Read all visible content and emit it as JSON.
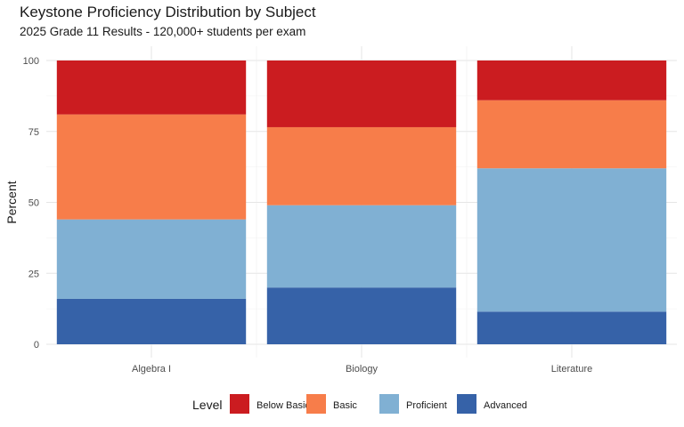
{
  "chart_data": {
    "type": "bar",
    "stacked": true,
    "title": "Keystone Proficiency Distribution by Subject",
    "subtitle": "2025 Grade 11 Results - 120,000+ students per exam",
    "xlabel": "",
    "ylabel": "Percent",
    "ylim": [
      0,
      100
    ],
    "yticks": [
      0,
      25,
      50,
      75,
      100
    ],
    "categories": [
      "Algebra I",
      "Biology",
      "Literature"
    ],
    "series": [
      {
        "name": "Advanced",
        "color": "#3662a8",
        "values": [
          16,
          20,
          11.5
        ]
      },
      {
        "name": "Proficient",
        "color": "#80b0d3",
        "values": [
          28,
          29,
          50.5
        ]
      },
      {
        "name": "Basic",
        "color": "#f77d4a",
        "values": [
          37,
          27.5,
          24
        ]
      },
      {
        "name": "Below Basic",
        "color": "#cb1c20",
        "values": [
          19,
          23.5,
          14
        ]
      }
    ],
    "legend": {
      "title": "Level",
      "position": "bottom",
      "order": [
        "Below Basic",
        "Basic",
        "Proficient",
        "Advanced"
      ]
    },
    "grid": true
  }
}
